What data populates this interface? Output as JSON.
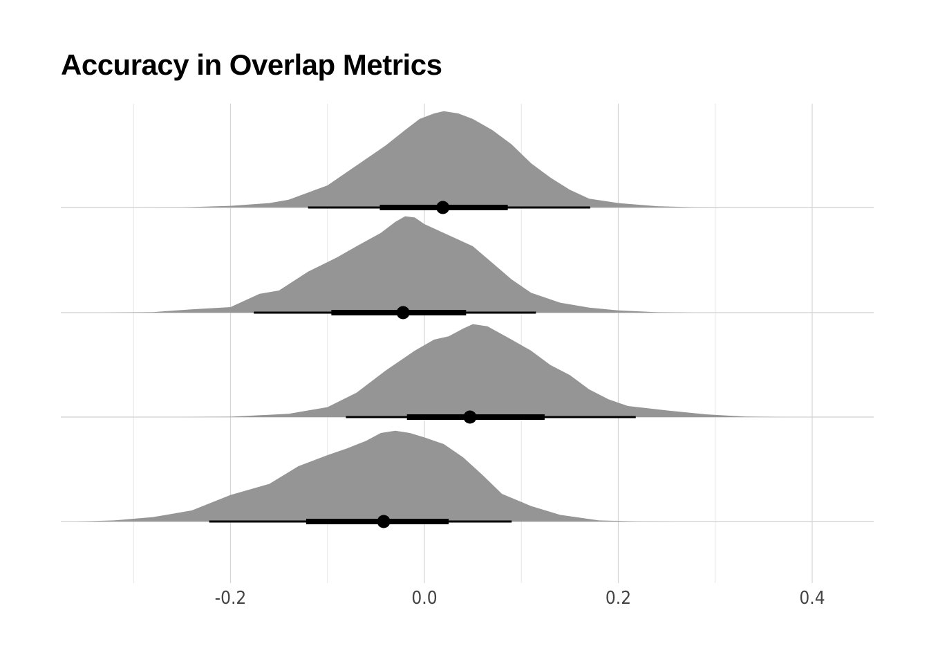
{
  "chart_data": {
    "type": "halfeye",
    "title": "Accuracy in Overlap Metrics",
    "xlabel": "",
    "ylabel": "",
    "xlim": [
      -0.375,
      0.465
    ],
    "x_ticks": [
      -0.2,
      0.0,
      0.2,
      0.4
    ],
    "x_tick_labels": [
      "-0.2",
      "0.0",
      "0.2",
      "0.4"
    ],
    "x_minor_gridlines": [
      -0.3,
      -0.1,
      0.1,
      0.3
    ],
    "grid": true,
    "fill_color": "#959595",
    "series": [
      {
        "median": 0.019,
        "interval_66": [
          -0.046,
          0.086
        ],
        "interval_95": [
          -0.12,
          0.171
        ],
        "density": [
          [
            -0.3,
            0.0
          ],
          [
            -0.25,
            0.002
          ],
          [
            -0.2,
            0.015
          ],
          [
            -0.16,
            0.04
          ],
          [
            -0.14,
            0.07
          ],
          [
            -0.1,
            0.2
          ],
          [
            -0.07,
            0.38
          ],
          [
            -0.04,
            0.56
          ],
          [
            -0.02,
            0.7
          ],
          [
            -0.005,
            0.8
          ],
          [
            0.01,
            0.85
          ],
          [
            0.02,
            0.87
          ],
          [
            0.035,
            0.85
          ],
          [
            0.05,
            0.8
          ],
          [
            0.07,
            0.7
          ],
          [
            0.09,
            0.57
          ],
          [
            0.11,
            0.4
          ],
          [
            0.13,
            0.27
          ],
          [
            0.15,
            0.16
          ],
          [
            0.17,
            0.08
          ],
          [
            0.2,
            0.04
          ],
          [
            0.24,
            0.012
          ],
          [
            0.28,
            0.002
          ],
          [
            0.32,
            0.0
          ]
        ]
      },
      {
        "median": -0.022,
        "interval_66": [
          -0.096,
          0.043
        ],
        "interval_95": [
          -0.176,
          0.115
        ],
        "density": [
          [
            -0.33,
            0.0
          ],
          [
            -0.28,
            0.005
          ],
          [
            -0.24,
            0.03
          ],
          [
            -0.2,
            0.05
          ],
          [
            -0.17,
            0.17
          ],
          [
            -0.15,
            0.2
          ],
          [
            -0.12,
            0.37
          ],
          [
            -0.09,
            0.5
          ],
          [
            -0.07,
            0.6
          ],
          [
            -0.045,
            0.72
          ],
          [
            -0.03,
            0.82
          ],
          [
            -0.02,
            0.87
          ],
          [
            -0.01,
            0.86
          ],
          [
            0.0,
            0.8
          ],
          [
            0.02,
            0.72
          ],
          [
            0.05,
            0.6
          ],
          [
            0.07,
            0.45
          ],
          [
            0.09,
            0.3
          ],
          [
            0.11,
            0.18
          ],
          [
            0.14,
            0.09
          ],
          [
            0.17,
            0.045
          ],
          [
            0.2,
            0.02
          ],
          [
            0.24,
            0.004
          ],
          [
            0.28,
            0.0
          ]
        ]
      },
      {
        "median": 0.047,
        "interval_66": [
          -0.018,
          0.124
        ],
        "interval_95": [
          -0.081,
          0.218
        ],
        "density": [
          [
            -0.25,
            0.0
          ],
          [
            -0.2,
            0.003
          ],
          [
            -0.14,
            0.03
          ],
          [
            -0.1,
            0.09
          ],
          [
            -0.07,
            0.22
          ],
          [
            -0.04,
            0.42
          ],
          [
            -0.01,
            0.6
          ],
          [
            0.01,
            0.7
          ],
          [
            0.025,
            0.73
          ],
          [
            0.04,
            0.8
          ],
          [
            0.05,
            0.84
          ],
          [
            0.065,
            0.82
          ],
          [
            0.09,
            0.7
          ],
          [
            0.11,
            0.6
          ],
          [
            0.13,
            0.47
          ],
          [
            0.15,
            0.38
          ],
          [
            0.17,
            0.25
          ],
          [
            0.19,
            0.16
          ],
          [
            0.21,
            0.1
          ],
          [
            0.25,
            0.06
          ],
          [
            0.29,
            0.025
          ],
          [
            0.33,
            0.005
          ],
          [
            0.37,
            0.0
          ]
        ]
      },
      {
        "median": -0.042,
        "interval_66": [
          -0.122,
          0.025
        ],
        "interval_95": [
          -0.222,
          0.09
        ],
        "density": [
          [
            -0.36,
            0.0
          ],
          [
            -0.32,
            0.01
          ],
          [
            -0.28,
            0.04
          ],
          [
            -0.24,
            0.1
          ],
          [
            -0.2,
            0.24
          ],
          [
            -0.16,
            0.34
          ],
          [
            -0.13,
            0.5
          ],
          [
            -0.1,
            0.6
          ],
          [
            -0.08,
            0.66
          ],
          [
            -0.06,
            0.73
          ],
          [
            -0.045,
            0.8
          ],
          [
            -0.03,
            0.82
          ],
          [
            -0.015,
            0.8
          ],
          [
            0.0,
            0.76
          ],
          [
            0.02,
            0.7
          ],
          [
            0.04,
            0.58
          ],
          [
            0.06,
            0.42
          ],
          [
            0.08,
            0.25
          ],
          [
            0.11,
            0.14
          ],
          [
            0.14,
            0.06
          ],
          [
            0.18,
            0.01
          ],
          [
            0.22,
            0.002
          ],
          [
            0.26,
            0.0
          ]
        ]
      }
    ]
  }
}
